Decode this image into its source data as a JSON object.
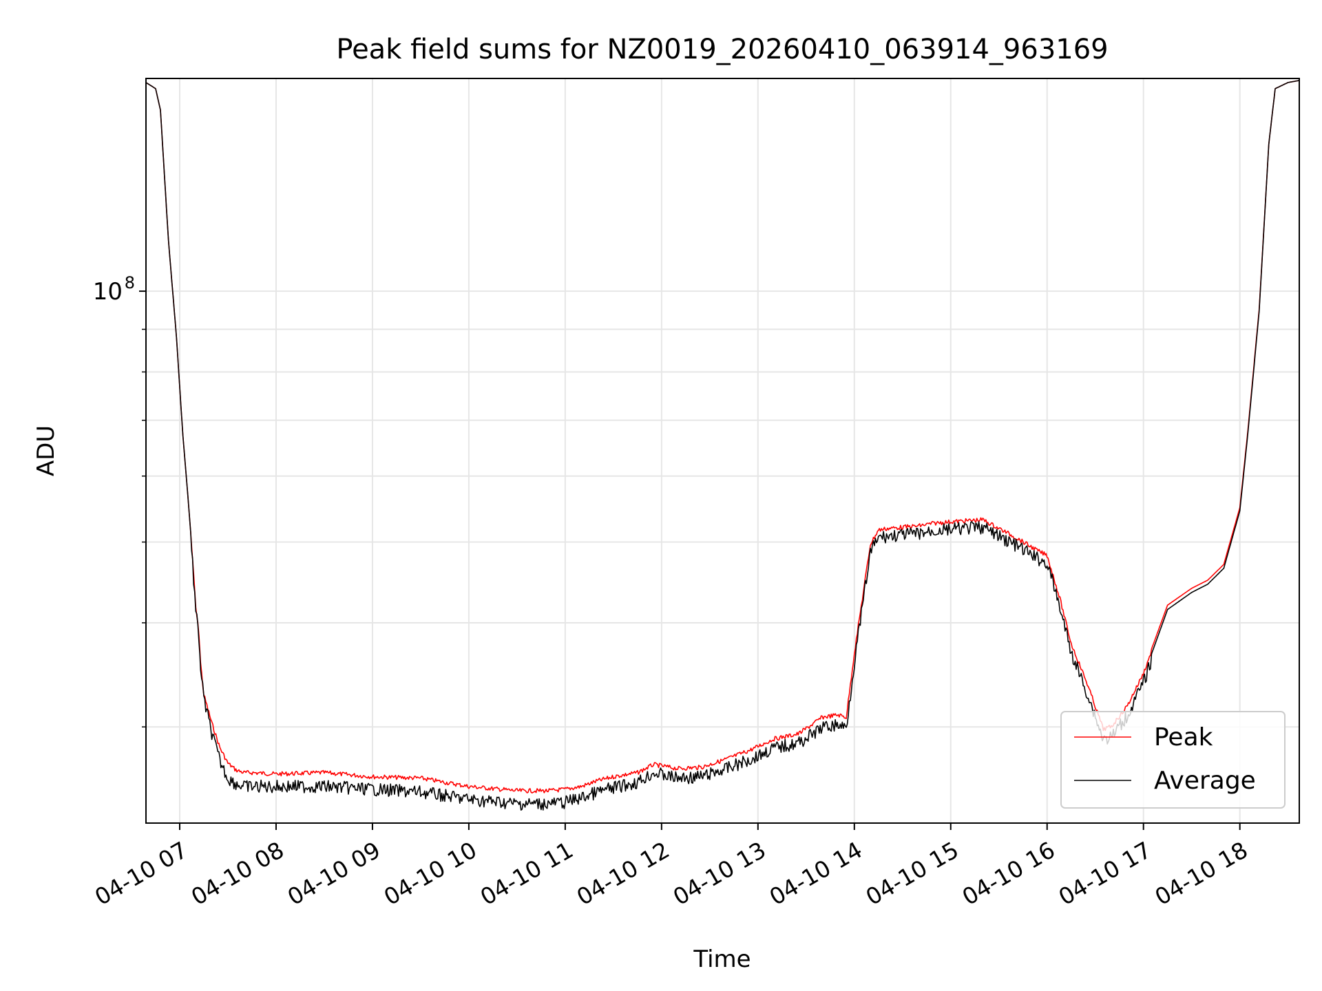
{
  "chart_data": {
    "type": "line",
    "title": "Peak field sums for NZ0019_20260410_063914_963169",
    "xlabel": "Time",
    "ylabel": "ADU",
    "y_scale": "log",
    "grid": true,
    "legend_position": "lower-right",
    "xlim": [
      "2026-04-10 06:39",
      "2026-04-10 18:37"
    ],
    "ylim": [
      23000000,
      180000000
    ],
    "x_ticks": [
      "04-10 07",
      "04-10 08",
      "04-10 09",
      "04-10 10",
      "04-10 11",
      "04-10 12",
      "04-10 13",
      "04-10 14",
      "04-10 15",
      "04-10 16",
      "04-10 17",
      "04-10 18"
    ],
    "y_ticks": [
      {
        "value": 100000000,
        "label_base": "10",
        "label_exp": "8"
      }
    ],
    "x_time": [
      "06:39",
      "06:45",
      "06:48",
      "06:53",
      "06:58",
      "07:02",
      "07:05",
      "07:08",
      "07:10",
      "07:12",
      "07:13",
      "07:15",
      "07:20",
      "07:25",
      "07:30",
      "07:35",
      "07:40",
      "07:45",
      "08:00",
      "08:30",
      "09:00",
      "09:30",
      "10:00",
      "10:30",
      "10:50",
      "11:00",
      "11:10",
      "11:20",
      "11:30",
      "11:45",
      "11:55",
      "12:10",
      "12:25",
      "12:40",
      "12:55",
      "13:10",
      "13:25",
      "13:35",
      "13:40",
      "13:50",
      "13:55",
      "14:00",
      "14:10",
      "14:15",
      "14:20",
      "14:30",
      "14:40",
      "14:50",
      "15:00",
      "15:20",
      "15:40",
      "15:55",
      "16:00",
      "16:05",
      "16:08",
      "16:15",
      "16:25",
      "16:35",
      "16:40",
      "16:50",
      "17:00",
      "17:15",
      "17:30",
      "17:40",
      "17:50",
      "18:00",
      "18:05",
      "18:12",
      "18:18",
      "18:22",
      "18:30",
      "18:37"
    ],
    "series": [
      {
        "name": "Peak",
        "color": "#ff0000",
        "values": [
          178000000,
          175000000,
          165000000,
          115000000,
          88000000,
          67000000,
          57000000,
          48000000,
          42000000,
          39000000,
          36000000,
          33000000,
          30500000,
          28500000,
          27300000,
          26800000,
          26600000,
          26600000,
          26500000,
          26600000,
          26300000,
          26200000,
          25600000,
          25300000,
          25300000,
          25400000,
          25600000,
          26000000,
          26300000,
          26600000,
          27200000,
          26900000,
          27000000,
          27600000,
          28300000,
          29200000,
          29600000,
          30500000,
          31000000,
          31200000,
          31000000,
          37000000,
          50000000,
          52000000,
          52200000,
          52400000,
          52600000,
          53000000,
          53200000,
          53500000,
          51000000,
          49000000,
          48500000,
          45000000,
          43000000,
          38000000,
          34000000,
          30000000,
          30200000,
          32000000,
          35000000,
          42000000,
          44000000,
          45000000,
          47000000,
          55000000,
          68000000,
          95000000,
          150000000,
          175000000,
          178000000,
          179000000
        ]
      },
      {
        "name": "Average",
        "color": "#000000",
        "values": [
          178000000,
          175000000,
          165000000,
          115000000,
          88000000,
          67000000,
          57000000,
          48000000,
          42000000,
          39000000,
          36000000,
          33000000,
          30000000,
          27800000,
          26500000,
          26100000,
          25900000,
          25900000,
          25900000,
          25900000,
          25700000,
          25500000,
          25000000,
          24700000,
          24700000,
          24800000,
          25100000,
          25500000,
          25800000,
          26200000,
          26900000,
          26500000,
          26600000,
          27200000,
          27900000,
          28800000,
          29200000,
          30000000,
          30500000,
          30700000,
          30500000,
          36500000,
          49500000,
          51500000,
          51700000,
          51900000,
          52100000,
          52500000,
          52700000,
          53000000,
          50500000,
          48500000,
          48000000,
          44500000,
          42500000,
          37500000,
          33500000,
          29500000,
          29700000,
          31500000,
          34500000,
          41500000,
          43500000,
          44500000,
          46500000,
          54500000,
          67500000,
          94500000,
          150000000,
          175000000,
          178000000,
          179000000
        ]
      }
    ]
  }
}
